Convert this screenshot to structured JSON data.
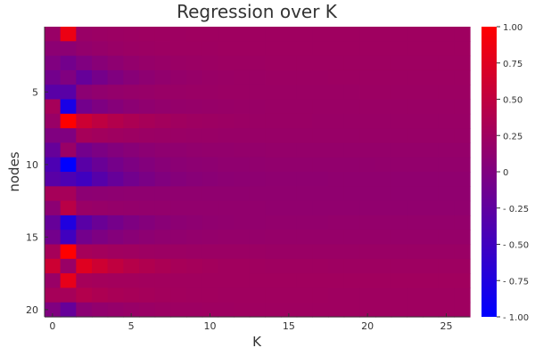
{
  "chart_data": {
    "type": "heatmap",
    "title": "Regression over K",
    "xlabel": "K",
    "ylabel": "nodes",
    "x_ticks": [
      "0",
      "5",
      "10",
      "15",
      "20",
      "25"
    ],
    "x_tick_values": [
      0,
      5,
      10,
      15,
      20,
      25
    ],
    "y_ticks": [
      "5",
      "10",
      "15",
      "20"
    ],
    "y_tick_values": [
      5,
      10,
      15,
      20
    ],
    "xlim": [
      -0.5,
      26.5
    ],
    "ylim": [
      0.5,
      20.5
    ],
    "x": [
      0,
      1,
      2,
      3,
      4,
      5,
      6,
      7,
      8,
      9,
      10,
      11,
      12,
      13,
      14,
      15,
      16,
      17,
      18,
      19,
      20,
      21,
      22,
      23,
      24,
      25,
      26
    ],
    "y": [
      1,
      2,
      3,
      4,
      5,
      6,
      7,
      8,
      9,
      10,
      11,
      12,
      13,
      14,
      15,
      16,
      17,
      18,
      19,
      20
    ],
    "z_columns": {
      "0": [
        0.2,
        0.1,
        0.0,
        -0.1,
        -0.3,
        0.3,
        0.2,
        0.0,
        -0.2,
        -0.4,
        -0.3,
        0.3,
        0.1,
        -0.2,
        -0.1,
        0.3,
        0.6,
        0.2,
        0.3,
        0.0
      ],
      "1": [
        0.85,
        0.1,
        -0.1,
        0.0,
        -0.3,
        -0.8,
        1.0,
        0.0,
        0.2,
        -1.0,
        -0.4,
        0.3,
        0.45,
        -0.75,
        -0.5,
        1.0,
        0.2,
        0.8,
        0.3,
        -0.2
      ],
      "2": [
        0.2,
        0.15,
        0.0,
        -0.2,
        0.1,
        -0.1,
        0.6,
        0.3,
        -0.1,
        -0.3,
        -0.5,
        0.1,
        0.2,
        -0.3,
        -0.1,
        0.3,
        0.75,
        0.3,
        0.4,
        0.1
      ]
    },
    "z_far": [
      0.25,
      0.25,
      0.24,
      0.23,
      0.22,
      0.21,
      0.2,
      0.19,
      0.17,
      0.15,
      0.13,
      0.13,
      0.14,
      0.16,
      0.18,
      0.21,
      0.24,
      0.26,
      0.25,
      0.25
    ],
    "z_decay": 0.72,
    "colorbar": {
      "min": -1.0,
      "max": 1.0,
      "tick_values": [
        1.0,
        0.75,
        0.5,
        0.25,
        0,
        -0.25,
        -0.5,
        -0.75,
        -1.0
      ],
      "tick_labels": [
        "1.00",
        "0.75",
        "0.50",
        "0.25",
        "0",
        "- 0.25",
        "- 0.50",
        "- 0.75",
        "- 1.00"
      ],
      "color_low": "#0000ff",
      "color_high": "#ff0000"
    },
    "grid": false,
    "colors": {
      "text": "#333333",
      "axis": "#333333"
    }
  }
}
